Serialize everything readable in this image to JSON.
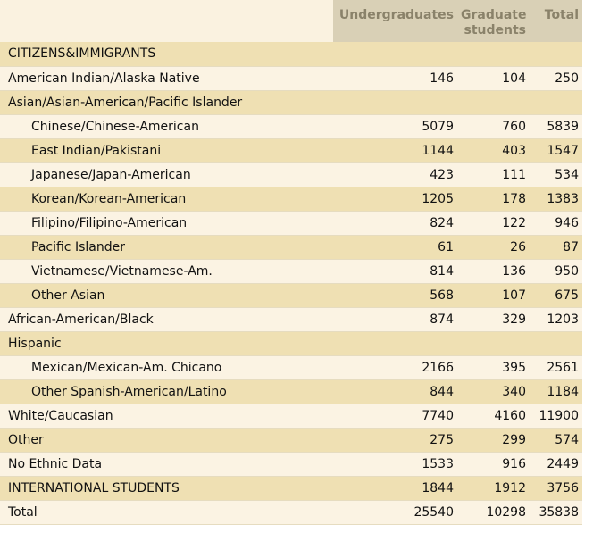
{
  "table": {
    "columns": [
      "Undergraduates",
      "Graduate students",
      "Total"
    ],
    "rows": [
      {
        "label": "CITIZENS&IMMIGRANTS"
      },
      {
        "label": "American Indian/Alaska Native",
        "values": [
          146,
          104,
          250
        ]
      },
      {
        "label": "Asian/Asian-American/Pacific Islander",
        "children": [
          {
            "label": "Chinese/Chinese-American",
            "values": [
              5079,
              760,
              5839
            ]
          },
          {
            "label": "East Indian/Pakistani",
            "values": [
              1144,
              403,
              1547
            ]
          },
          {
            "label": "Japanese/Japan-American",
            "values": [
              423,
              111,
              534
            ]
          },
          {
            "label": "Korean/Korean-American",
            "values": [
              1205,
              178,
              1383
            ]
          },
          {
            "label": "Filipino/Filipino-American",
            "values": [
              824,
              122,
              946
            ]
          },
          {
            "label": "Pacific Islander",
            "values": [
              61,
              26,
              87
            ]
          },
          {
            "label": "Vietnamese/Vietnamese-Am.",
            "values": [
              814,
              136,
              950
            ]
          },
          {
            "label": "Other Asian",
            "values": [
              568,
              107,
              675
            ]
          }
        ]
      },
      {
        "label": "African-American/Black",
        "values": [
          874,
          329,
          1203
        ]
      },
      {
        "label": "Hispanic",
        "children": [
          {
            "label": "Mexican/Mexican-Am. Chicano",
            "values": [
              2166,
              395,
              2561
            ]
          },
          {
            "label": "Other Spanish-American/Latino",
            "values": [
              844,
              340,
              1184
            ]
          }
        ]
      },
      {
        "label": "White/Caucasian",
        "values": [
          7740,
          4160,
          11900
        ]
      },
      {
        "label": "Other",
        "values": [
          275,
          299,
          574
        ]
      },
      {
        "label": "No Ethnic Data",
        "values": [
          1533,
          916,
          2449
        ]
      },
      {
        "label": "INTERNATIONAL STUDENTS",
        "values": [
          1844,
          1912,
          3756
        ]
      },
      {
        "label": "Total",
        "values": [
          25540,
          10298,
          35838
        ]
      }
    ]
  }
}
